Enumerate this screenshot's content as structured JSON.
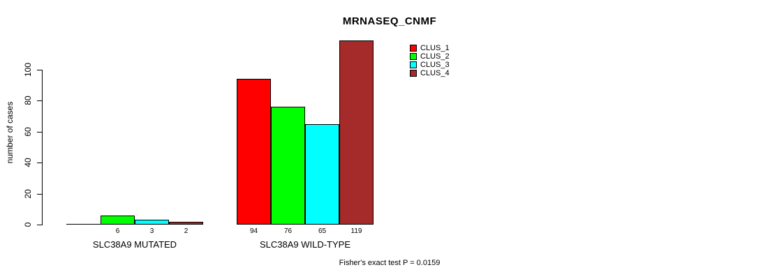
{
  "chart_data": {
    "type": "bar",
    "title": "MRNASEQ_CNMF",
    "ylabel": "number of cases",
    "xlabel": "",
    "footnote": "Fisher's exact test P = 0.0159",
    "categories": [
      "SLC38A9 MUTATED",
      "SLC38A9 WILD-TYPE"
    ],
    "series": [
      {
        "name": "CLUS_1",
        "color": "#ff0000",
        "values": [
          0,
          94
        ]
      },
      {
        "name": "CLUS_2",
        "color": "#00ff00",
        "values": [
          6,
          76
        ]
      },
      {
        "name": "CLUS_3",
        "color": "#00ffff",
        "values": [
          3,
          65
        ]
      },
      {
        "name": "CLUS_4",
        "color": "#a52a2a",
        "values": [
          2,
          119
        ]
      }
    ],
    "yticks": [
      0,
      20,
      40,
      60,
      80,
      100
    ],
    "ylim": [
      0,
      100
    ],
    "grid": false,
    "legend_position": "top-right",
    "bar_value_labels_shown": true,
    "zero_value_labels_hidden": true,
    "background_color": "#ffffff",
    "axis_color": "#000000"
  }
}
